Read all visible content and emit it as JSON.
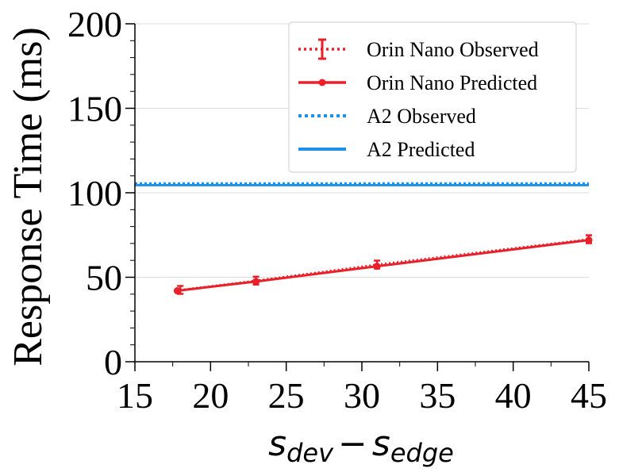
{
  "chart_data": {
    "type": "line",
    "title": "",
    "xlabel": "s_dev − s_edge",
    "xlabel_parts": {
      "base1": "s",
      "sub1": "dev",
      "minus": "−",
      "base2": "s",
      "sub2": "edge"
    },
    "ylabel": "Response Time (ms)",
    "xlim": [
      15,
      45
    ],
    "ylim": [
      0,
      200
    ],
    "xticks": [
      15,
      20,
      25,
      30,
      35,
      40,
      45
    ],
    "yticks": [
      0,
      50,
      100,
      150,
      200
    ],
    "grid": "horizontal",
    "legend_position": "top-right",
    "series": [
      {
        "name": "Orin Nano Observed",
        "style": "dotted",
        "color": "#e8202a",
        "error_bars": true,
        "x": [
          18,
          23,
          31,
          45
        ],
        "y": [
          42.5,
          48,
          57.5,
          72.5
        ]
      },
      {
        "name": "Orin Nano Predicted",
        "style": "solid-marker",
        "color": "#e8202a",
        "x": [
          17.8,
          23,
          31,
          45
        ],
        "y": [
          42,
          47.5,
          56.5,
          72
        ]
      },
      {
        "name": "A2 Observed",
        "style": "dotted",
        "color": "#1e90e8",
        "x": [
          15,
          45
        ],
        "y": [
          105.5,
          105.5
        ]
      },
      {
        "name": "A2 Predicted",
        "style": "solid",
        "color": "#1e90e8",
        "x": [
          15,
          45
        ],
        "y": [
          104.5,
          104.5
        ]
      }
    ]
  }
}
